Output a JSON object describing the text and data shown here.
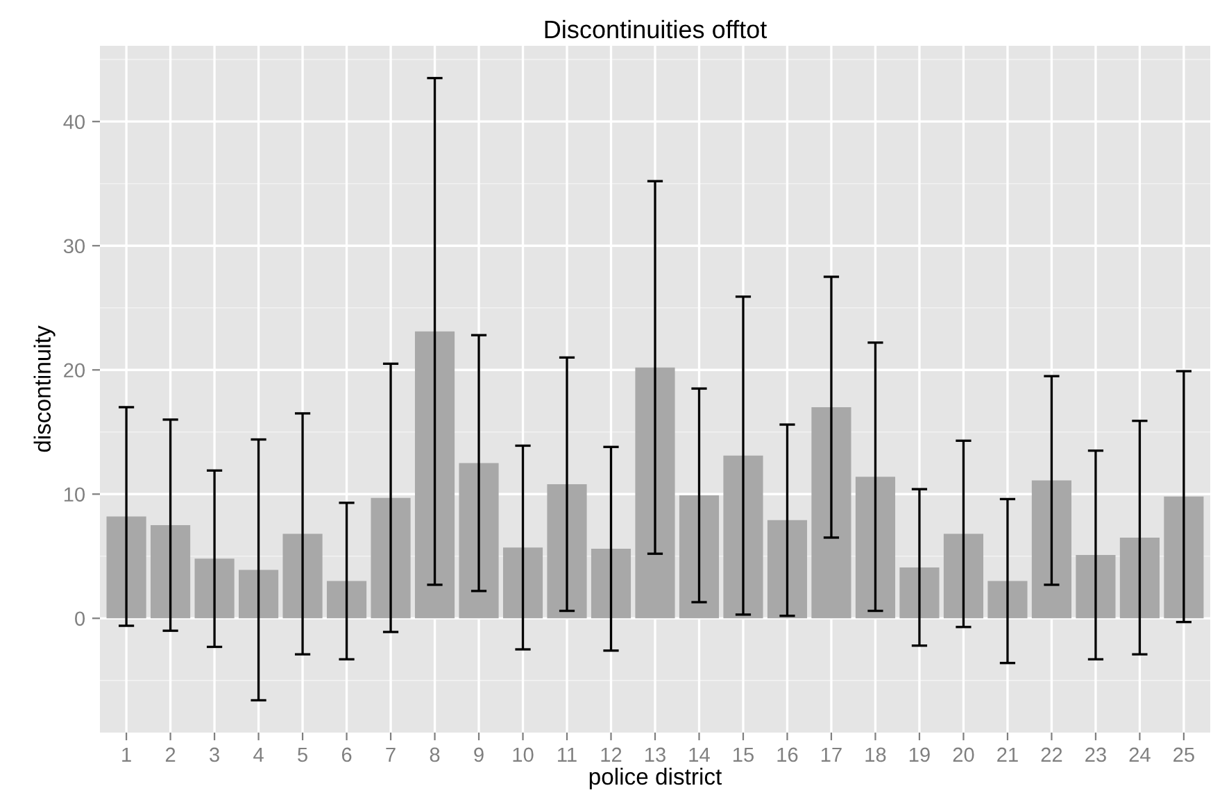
{
  "chart_data": {
    "type": "bar",
    "title": "Discontinuities offtot",
    "xlabel": "police district",
    "ylabel": "discontinuity",
    "categories": [
      "1",
      "2",
      "3",
      "4",
      "5",
      "6",
      "7",
      "8",
      "9",
      "10",
      "11",
      "12",
      "13",
      "14",
      "15",
      "16",
      "17",
      "18",
      "19",
      "20",
      "21",
      "22",
      "23",
      "24",
      "25"
    ],
    "values": [
      8.2,
      7.5,
      4.8,
      3.9,
      6.8,
      3.0,
      9.7,
      23.1,
      12.5,
      5.7,
      10.8,
      5.6,
      20.2,
      9.9,
      13.1,
      7.9,
      17.0,
      11.4,
      4.1,
      6.8,
      3.0,
      11.1,
      5.1,
      6.5,
      9.8
    ],
    "errors": [
      8.8,
      8.5,
      7.1,
      10.5,
      9.7,
      6.3,
      10.8,
      20.4,
      10.3,
      8.2,
      10.2,
      8.2,
      15.0,
      8.6,
      12.8,
      7.7,
      10.5,
      10.8,
      6.3,
      7.5,
      6.6,
      8.4,
      8.4,
      9.4,
      10.1
    ],
    "color": "#a8a8a8",
    "ylim": [
      -9.2,
      46.1
    ],
    "yticks": [
      0,
      10,
      20,
      30,
      40
    ],
    "grid": true
  }
}
